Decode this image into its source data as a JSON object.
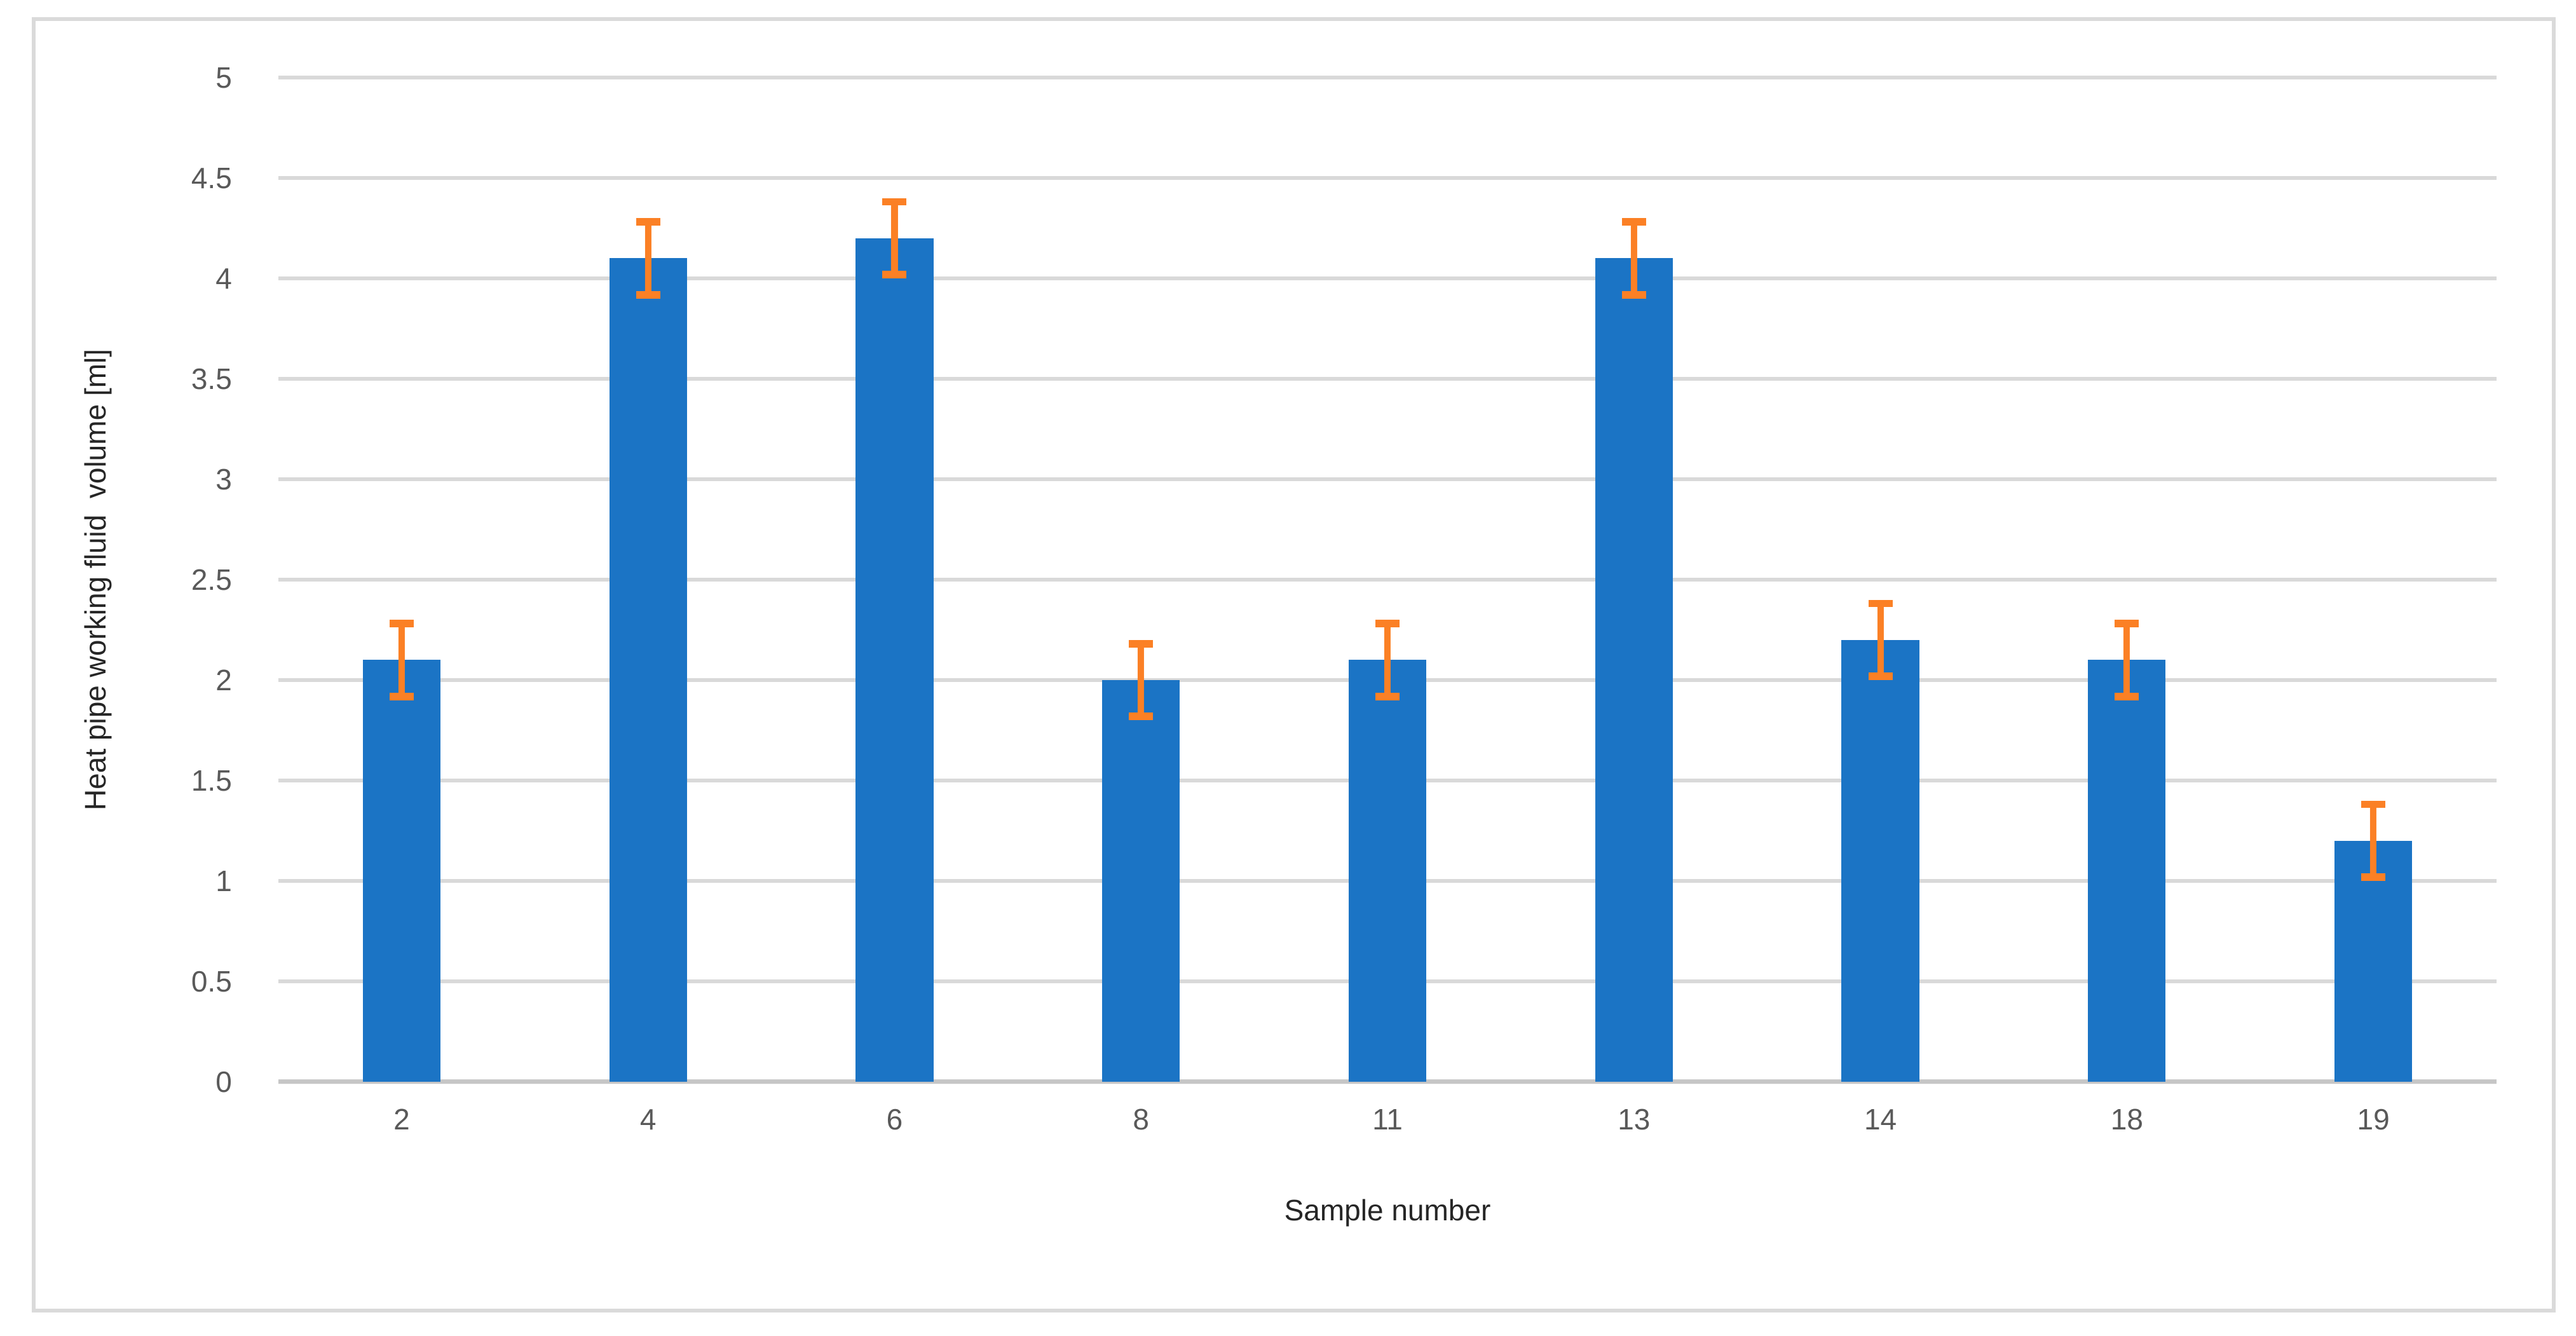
{
  "chart_data": {
    "type": "bar",
    "title": "",
    "xlabel": "Sample number",
    "ylabel": "Heat pipe working fluid  volume [ml]",
    "categories": [
      "2",
      "4",
      "6",
      "8",
      "11",
      "13",
      "14",
      "18",
      "19"
    ],
    "series": [
      {
        "name": "Heat pipe working fluid volume",
        "values": [
          2.1,
          4.1,
          4.2,
          2.0,
          2.1,
          4.1,
          2.2,
          2.1,
          1.2
        ],
        "error_bars": {
          "type": "symmetric",
          "values": [
            0.2,
            0.2,
            0.2,
            0.2,
            0.2,
            0.2,
            0.2,
            0.2,
            0.2
          ]
        }
      }
    ],
    "ylim": [
      0,
      5
    ],
    "ytick_step": 0.5,
    "ytick_labels": [
      "0",
      "0.5",
      "1",
      "1.5",
      "2",
      "2.5",
      "3",
      "3.5",
      "4",
      "4.5",
      "5"
    ],
    "grid": "horizontal",
    "legend": "none",
    "colors": {
      "bar": "#1b74c5",
      "error_bar": "#fb8025",
      "gridline": "#d9d9d9",
      "zero_axis_line": "#c6c6c6",
      "frame_border": "#dadada",
      "tick_text": "#595959",
      "axis_title_text": "#262626",
      "background": "#ffffff"
    }
  }
}
